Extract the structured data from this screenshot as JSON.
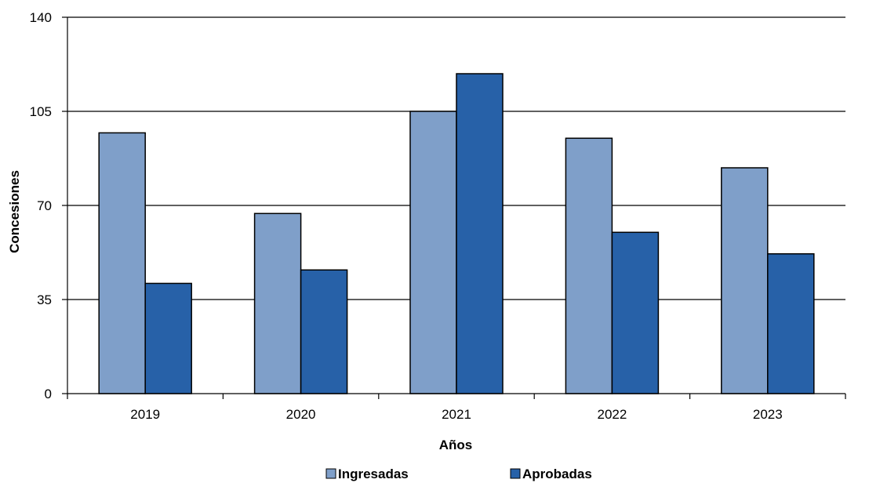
{
  "chart_data": {
    "type": "bar",
    "title": "",
    "xlabel": "Años",
    "ylabel": "Concesiones",
    "categories": [
      "2019",
      "2020",
      "2021",
      "2022",
      "2023"
    ],
    "series": [
      {
        "name": "Ingresadas",
        "color": "#7f9fc9",
        "values": [
          97,
          67,
          105,
          95,
          84
        ]
      },
      {
        "name": "Aprobadas",
        "color": "#2761a8",
        "values": [
          41,
          46,
          119,
          60,
          52
        ]
      }
    ],
    "ylim": [
      0,
      140
    ],
    "yticks": [
      0,
      35,
      70,
      105,
      140
    ],
    "grid": true,
    "legend": "bottom"
  }
}
